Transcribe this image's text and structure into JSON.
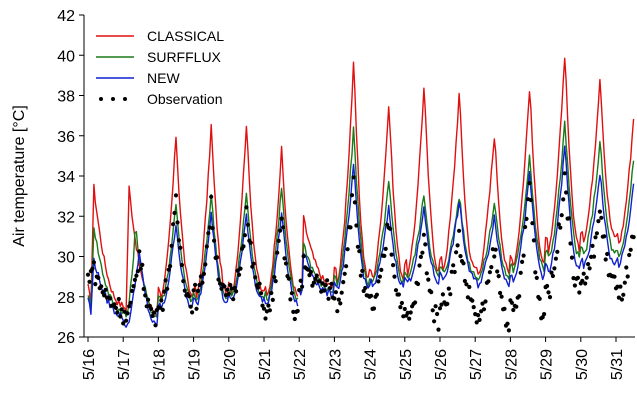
{
  "chart_data": {
    "type": "line",
    "title": "",
    "xlabel": "",
    "ylabel": "Air temperature [°C]",
    "ylim": [
      26,
      42
    ],
    "yticks": [
      26,
      28,
      30,
      32,
      34,
      36,
      38,
      40,
      42
    ],
    "xlim": [
      0,
      16.8
    ],
    "categories": [
      "5/16",
      "5/17",
      "5/18",
      "5/19",
      "5/20",
      "5/21",
      "5/22",
      "5/23",
      "5/24",
      "5/25",
      "5/26",
      "5/27",
      "5/28",
      "5/29",
      "5/30",
      "5/31"
    ],
    "grid": false,
    "legend": "top-left",
    "series": [
      {
        "name": "CLASSICAL",
        "color": "#e01010",
        "style": "line",
        "days": [
          {
            "min": 27.6,
            "max": 33.7,
            "peak": 0.15,
            "start": 28.5
          },
          {
            "min": 27.2,
            "max": 33.7,
            "peak": 0.15
          },
          {
            "min": 28.0,
            "max": 36.0,
            "peak": 0.5
          },
          {
            "min": 28.0,
            "max": 36.5,
            "peak": 0.5
          },
          {
            "min": 28.2,
            "max": 36.6,
            "peak": 0.5
          },
          {
            "min": 28.0,
            "max": 35.3,
            "peak": 0.5
          },
          {
            "min": 28.5,
            "max": 32.1,
            "peak": 0.1,
            "gapStart": true
          },
          {
            "min": 28.8,
            "max": 39.8,
            "peak": 0.55
          },
          {
            "min": 28.9,
            "max": 37.7,
            "peak": 0.55
          },
          {
            "min": 29.2,
            "max": 38.6,
            "peak": 0.55
          },
          {
            "min": 29.4,
            "max": 38.3,
            "peak": 0.55
          },
          {
            "min": 29.1,
            "max": 36.2,
            "peak": 0.55
          },
          {
            "min": 29.6,
            "max": 38.6,
            "peak": 0.55
          },
          {
            "min": 30.3,
            "max": 40.3,
            "peak": 0.55
          },
          {
            "min": 30.9,
            "max": 39.1,
            "peak": 0.55
          },
          {
            "min": 30.7,
            "max": 38.1,
            "peak": 0.55,
            "end": 30.8
          }
        ]
      },
      {
        "name": "SURFFLUX",
        "color": "#1a7a1a",
        "style": "line",
        "days": [
          {
            "min": 27.3,
            "max": 31.7,
            "peak": 0.15,
            "start": 28.2
          },
          {
            "min": 27.0,
            "max": 31.5,
            "peak": 0.35
          },
          {
            "min": 27.8,
            "max": 32.7,
            "peak": 0.5
          },
          {
            "min": 27.8,
            "max": 33.1,
            "peak": 0.5
          },
          {
            "min": 28.0,
            "max": 33.2,
            "peak": 0.5
          },
          {
            "min": 27.8,
            "max": 33.5,
            "peak": 0.5
          },
          {
            "min": 28.3,
            "max": 30.8,
            "peak": 0.1,
            "gapStart": true
          },
          {
            "min": 28.6,
            "max": 36.5,
            "peak": 0.55
          },
          {
            "min": 28.7,
            "max": 33.8,
            "peak": 0.55
          },
          {
            "min": 29.0,
            "max": 33.2,
            "peak": 0.55
          },
          {
            "min": 29.2,
            "max": 33.1,
            "peak": 0.55
          },
          {
            "min": 28.9,
            "max": 32.8,
            "peak": 0.55
          },
          {
            "min": 29.3,
            "max": 35.2,
            "peak": 0.55
          },
          {
            "min": 29.9,
            "max": 36.8,
            "peak": 0.55
          },
          {
            "min": 30.1,
            "max": 35.8,
            "peak": 0.55
          },
          {
            "min": 29.9,
            "max": 35.9,
            "peak": 0.55,
            "end": 30.1
          }
        ]
      },
      {
        "name": "NEW",
        "color": "#1020d0",
        "style": "line",
        "days": [
          {
            "min": 27.1,
            "max": 30.0,
            "peak": 0.15,
            "start": 28.0
          },
          {
            "min": 26.5,
            "max": 30.3,
            "peak": 0.45
          },
          {
            "min": 27.4,
            "max": 31.7,
            "peak": 0.5
          },
          {
            "min": 27.6,
            "max": 32.3,
            "peak": 0.5
          },
          {
            "min": 27.8,
            "max": 32.1,
            "peak": 0.5
          },
          {
            "min": 27.6,
            "max": 32.2,
            "peak": 0.5
          },
          {
            "min": 28.1,
            "max": 30.4,
            "peak": 0.1,
            "gapStart": true
          },
          {
            "min": 28.4,
            "max": 34.6,
            "peak": 0.55
          },
          {
            "min": 28.5,
            "max": 32.5,
            "peak": 0.55
          },
          {
            "min": 28.7,
            "max": 32.4,
            "peak": 0.55
          },
          {
            "min": 28.9,
            "max": 32.8,
            "peak": 0.55
          },
          {
            "min": 28.6,
            "max": 32.1,
            "peak": 0.55
          },
          {
            "min": 28.9,
            "max": 34.2,
            "peak": 0.55
          },
          {
            "min": 29.2,
            "max": 35.6,
            "peak": 0.55
          },
          {
            "min": 29.5,
            "max": 34.3,
            "peak": 0.55
          },
          {
            "min": 29.6,
            "max": 34.3,
            "peak": 0.55,
            "end": 29.6
          }
        ]
      },
      {
        "name": "Observation",
        "color": "#000000",
        "style": "dots",
        "days": [
          {
            "min": 27.5,
            "max": 29.9,
            "peak": 0.05,
            "start": 29.0
          },
          {
            "min": 26.9,
            "max": 30.2,
            "peak": 0.45
          },
          {
            "min": 27.7,
            "max": 32.6,
            "peak": 0.5
          },
          {
            "min": 27.9,
            "max": 32.5,
            "peak": 0.5
          },
          {
            "min": 28.0,
            "max": 32.2,
            "peak": 0.5
          },
          {
            "min": 27.1,
            "max": 31.8,
            "peak": 0.5
          },
          {
            "min": 28.3,
            "max": 29.8,
            "peak": 0.1,
            "gapStart": true
          },
          {
            "min": 27.7,
            "max": 33.7,
            "peak": 0.55
          },
          {
            "min": 27.5,
            "max": 31.9,
            "peak": 0.55
          },
          {
            "min": 26.8,
            "max": 31.0,
            "peak": 0.55
          },
          {
            "min": 27.7,
            "max": 31.0,
            "peak": 0.55
          },
          {
            "min": 26.8,
            "max": 30.6,
            "peak": 0.55
          },
          {
            "min": 27.0,
            "max": 33.9,
            "peak": 0.55
          },
          {
            "min": 28.3,
            "max": 34.3,
            "peak": 0.55
          },
          {
            "min": 28.8,
            "max": 32.3,
            "peak": 0.55
          },
          {
            "min": 28.0,
            "max": 31.6,
            "peak": 0.55,
            "end": 28.0
          }
        ]
      }
    ]
  }
}
